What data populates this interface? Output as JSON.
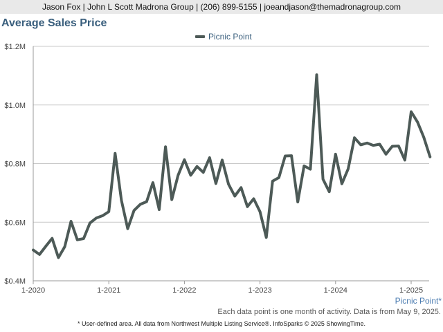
{
  "header": {
    "agent_line": "Jason Fox | John L Scott Madrona Group | (206) 899-5155 | joeandjason@themadronagroup.com"
  },
  "title": "Average Sales Price",
  "area_label": "Picnic Point*",
  "note_line": "Each data point is one month of activity. Data is from May 9, 2025.",
  "source_line": "* User-defined area. All data from Northwest Multiple Listing Service®. InfoSparks © 2025 ShowingTime.",
  "colors": {
    "line": "#4d5a57",
    "title": "#3a5f7d",
    "grid": "#c8c8c8"
  },
  "chart_data": {
    "type": "line",
    "title": "Average Sales Price",
    "legend_position": "top-center",
    "grid": true,
    "ylim": [
      400000,
      1200000
    ],
    "yticks": [
      {
        "value": 400000,
        "label": "$0.4M"
      },
      {
        "value": 600000,
        "label": "$0.6M"
      },
      {
        "value": 800000,
        "label": "$0.8M"
      },
      {
        "value": 1000000,
        "label": "$1.0M"
      },
      {
        "value": 1200000,
        "label": "$1.2M"
      }
    ],
    "xticks": [
      "1-2020",
      "1-2021",
      "1-2022",
      "1-2023",
      "1-2024",
      "1-2025"
    ],
    "x": [
      "1-2020",
      "2-2020",
      "3-2020",
      "4-2020",
      "5-2020",
      "6-2020",
      "7-2020",
      "8-2020",
      "9-2020",
      "10-2020",
      "11-2020",
      "12-2020",
      "1-2021",
      "2-2021",
      "3-2021",
      "4-2021",
      "5-2021",
      "6-2021",
      "7-2021",
      "8-2021",
      "9-2021",
      "10-2021",
      "11-2021",
      "12-2021",
      "1-2022",
      "2-2022",
      "3-2022",
      "4-2022",
      "5-2022",
      "6-2022",
      "7-2022",
      "8-2022",
      "9-2022",
      "10-2022",
      "11-2022",
      "12-2022",
      "1-2023",
      "2-2023",
      "3-2023",
      "4-2023",
      "5-2023",
      "6-2023",
      "7-2023",
      "8-2023",
      "9-2023",
      "10-2023",
      "11-2023",
      "12-2023",
      "1-2024",
      "2-2024",
      "3-2024",
      "4-2024",
      "5-2024",
      "6-2024",
      "7-2024",
      "8-2024",
      "9-2024",
      "10-2024",
      "11-2024",
      "12-2024",
      "1-2025",
      "2-2025",
      "3-2025",
      "4-2025"
    ],
    "series": [
      {
        "name": "Picnic Point",
        "values": [
          505000,
          490000,
          518000,
          545000,
          479000,
          516000,
          603000,
          540000,
          544000,
          597000,
          614000,
          622000,
          636000,
          835000,
          675000,
          578000,
          640000,
          661000,
          670000,
          735000,
          643000,
          857000,
          677000,
          760000,
          813000,
          760000,
          790000,
          770000,
          820000,
          732000,
          812000,
          730000,
          689000,
          718000,
          653000,
          680000,
          636000,
          548000,
          740000,
          752000,
          826000,
          827000,
          669000,
          792000,
          781000,
          1103000,
          747000,
          704000,
          832000,
          731000,
          782000,
          888000,
          864000,
          870000,
          862000,
          866000,
          832000,
          859000,
          860000,
          812000,
          977000,
          942000,
          890000,
          823000
        ]
      }
    ]
  }
}
